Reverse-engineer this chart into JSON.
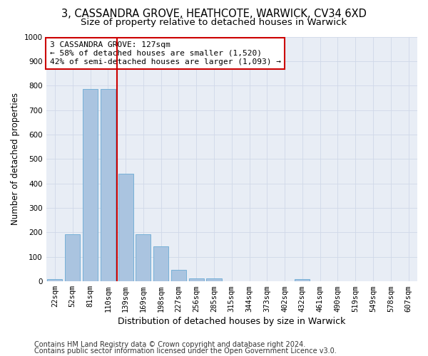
{
  "title1": "3, CASSANDRA GROVE, HEATHCOTE, WARWICK, CV34 6XD",
  "title2": "Size of property relative to detached houses in Warwick",
  "xlabel": "Distribution of detached houses by size in Warwick",
  "ylabel": "Number of detached properties",
  "categories": [
    "22sqm",
    "52sqm",
    "81sqm",
    "110sqm",
    "139sqm",
    "169sqm",
    "198sqm",
    "227sqm",
    "256sqm",
    "285sqm",
    "315sqm",
    "344sqm",
    "373sqm",
    "402sqm",
    "432sqm",
    "461sqm",
    "490sqm",
    "519sqm",
    "549sqm",
    "578sqm",
    "607sqm"
  ],
  "values": [
    10,
    193,
    785,
    785,
    440,
    193,
    143,
    47,
    12,
    12,
    0,
    0,
    0,
    0,
    10,
    0,
    0,
    0,
    0,
    0,
    0
  ],
  "bar_color": "#aac4e0",
  "bar_edge_color": "#6aaad4",
  "vline_color": "#cc0000",
  "annotation_text": "3 CASSANDRA GROVE: 127sqm\n← 58% of detached houses are smaller (1,520)\n42% of semi-detached houses are larger (1,093) →",
  "annotation_box_color": "#ffffff",
  "annotation_box_edge_color": "#cc0000",
  "ylim": [
    0,
    1000
  ],
  "yticks": [
    0,
    100,
    200,
    300,
    400,
    500,
    600,
    700,
    800,
    900,
    1000
  ],
  "grid_color": "#d0d8e8",
  "bg_color": "#e8edf5",
  "footer1": "Contains HM Land Registry data © Crown copyright and database right 2024.",
  "footer2": "Contains public sector information licensed under the Open Government Licence v3.0.",
  "title1_fontsize": 10.5,
  "title2_fontsize": 9.5,
  "xlabel_fontsize": 9,
  "ylabel_fontsize": 8.5,
  "tick_fontsize": 7.5,
  "annotation_fontsize": 8,
  "footer_fontsize": 7
}
